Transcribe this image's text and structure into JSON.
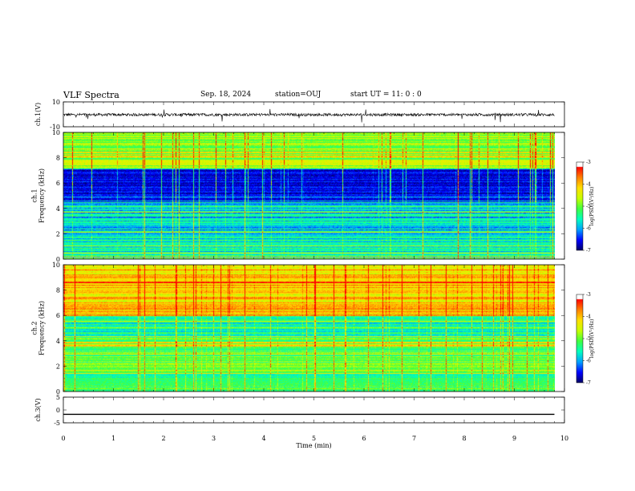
{
  "header": {
    "title": "VLF Spectra",
    "date": "Sep. 18, 2024",
    "station": "station=OUJ",
    "start": "start  UT =   11: 0  : 0"
  },
  "colors": {
    "colormap": [
      "#000060",
      "#0000ff",
      "#00a0ff",
      "#00ffc0",
      "#40ff40",
      "#c8ff00",
      "#ffe000",
      "#ff8000",
      "#ff0000",
      "#ffffff"
    ],
    "trace": "#000000",
    "axis": "#000000"
  },
  "chart_data": [
    {
      "type": "line",
      "panel": "ch1-waveform",
      "ylabel": "ch.1(V)",
      "ylim": [
        -10,
        10
      ],
      "yticks": [
        "10",
        "-10"
      ],
      "xlim": [
        0,
        10
      ],
      "x_extent": 9.8,
      "baseline": -0.3,
      "description_values": "noise trace around -0.3 V with occasional spikes"
    },
    {
      "type": "heatmap",
      "panel": "ch1-spectrogram",
      "ylabel": "ch.1\nFrequency  (kHz)",
      "ylim": [
        0,
        10
      ],
      "yticks": [
        "0",
        "2",
        "4",
        "6",
        "8",
        "10"
      ],
      "xlim": [
        0,
        10
      ],
      "x_extent": 9.8,
      "colorbar": {
        "label": "log(PSD)(V²/Hz)",
        "range": [
          -7,
          -3
        ],
        "ticks": [
          "-3",
          "-4",
          "-5",
          "-6",
          "-7"
        ]
      }
    },
    {
      "type": "heatmap",
      "panel": "ch2-spectrogram",
      "ylabel": "ch.2\nFrequency  (kHz)",
      "ylim": [
        0,
        10
      ],
      "yticks": [
        "0",
        "2",
        "4",
        "6",
        "8",
        "10"
      ],
      "xlim": [
        0,
        10
      ],
      "x_extent": 9.8,
      "colorbar": {
        "label": "log(PSD)(V²/Hz)",
        "range": [
          -7,
          -3
        ],
        "ticks": [
          "-3",
          "-4",
          "-5",
          "-6",
          "-7"
        ]
      }
    },
    {
      "type": "line",
      "panel": "ch3-waveform",
      "ylabel": "ch.3(V)",
      "ylim": [
        -5,
        5
      ],
      "yticks": [
        "5",
        "0",
        "-5"
      ],
      "xlim": [
        0,
        10
      ],
      "x_extent": 9.8,
      "baseline": -1.7
    }
  ],
  "xaxis": {
    "label": "Time  (min)",
    "ticks": [
      "0",
      "1",
      "2",
      "3",
      "4",
      "5",
      "6",
      "7",
      "8",
      "9",
      "10"
    ]
  }
}
